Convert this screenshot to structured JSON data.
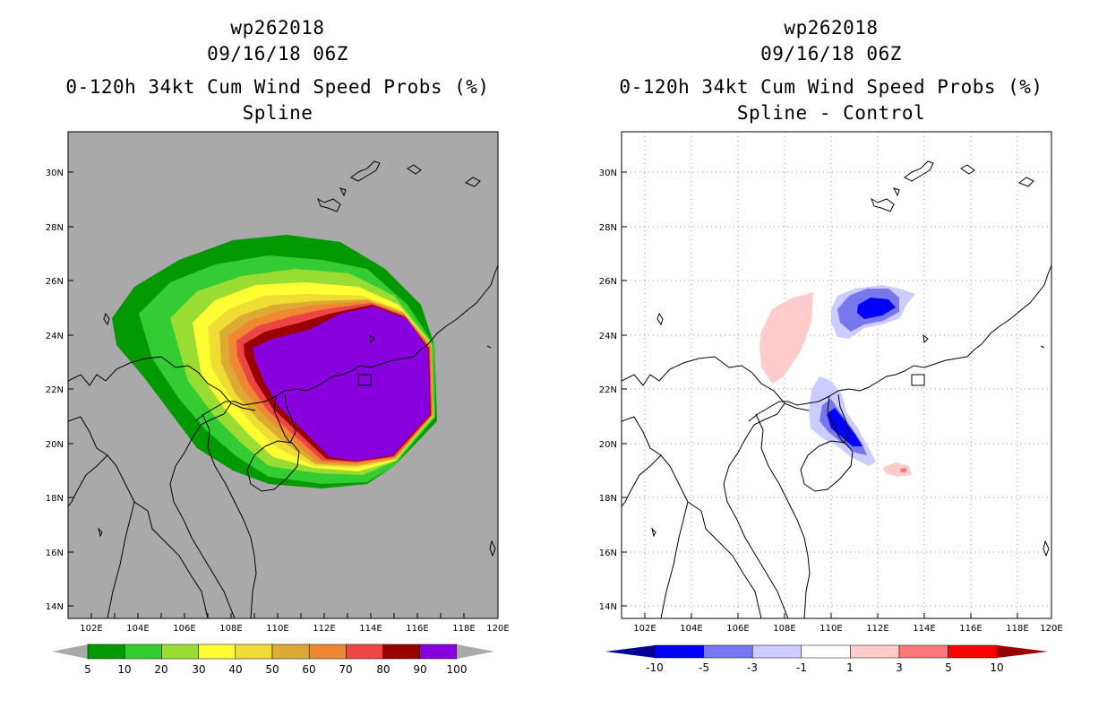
{
  "panels": [
    {
      "title_line1": "wp262018",
      "title_line2": "09/16/18 06Z",
      "title_line3": "0-120h 34kt Cum Wind Speed Probs (%)",
      "title_line4": "Spline",
      "lat_labels": [
        "30N",
        "28N",
        "26N",
        "24N",
        "22N",
        "20N",
        "18N",
        "16N",
        "14N"
      ],
      "lon_labels": [
        "102E",
        "104E",
        "106E",
        "108E",
        "110E",
        "112E",
        "114E",
        "116E",
        "118E",
        "120E"
      ],
      "background": "#a9a9a9",
      "colorbar": {
        "labels": [
          "5",
          "10",
          "20",
          "30",
          "40",
          "50",
          "60",
          "70",
          "80",
          "90",
          "100"
        ],
        "colors": [
          "#009900",
          "#33cc33",
          "#99dd33",
          "#ffff33",
          "#eedd33",
          "#ddaa33",
          "#ee8833",
          "#ee4444",
          "#990000",
          "#8800dd"
        ]
      }
    },
    {
      "title_line1": "wp262018",
      "title_line2": "09/16/18 06Z",
      "title_line3": "0-120h 34kt Cum Wind Speed Probs (%)",
      "title_line4": "Spline - Control",
      "lat_labels": [
        "30N",
        "28N",
        "26N",
        "24N",
        "22N",
        "20N",
        "18N",
        "16N",
        "14N"
      ],
      "lon_labels": [
        "102E",
        "104E",
        "106E",
        "108E",
        "110E",
        "112E",
        "114E",
        "116E",
        "118E",
        "120E"
      ],
      "background": "#ffffff",
      "colorbar": {
        "labels": [
          "-10",
          "-5",
          "-3",
          "-1",
          "1",
          "3",
          "5",
          "10"
        ],
        "colors": [
          "#000099",
          "#0000ff",
          "#7777ee",
          "#ccccff",
          "#ffffff",
          "#ffcccc",
          "#ff7777",
          "#ff0000",
          "#990000"
        ]
      }
    }
  ]
}
